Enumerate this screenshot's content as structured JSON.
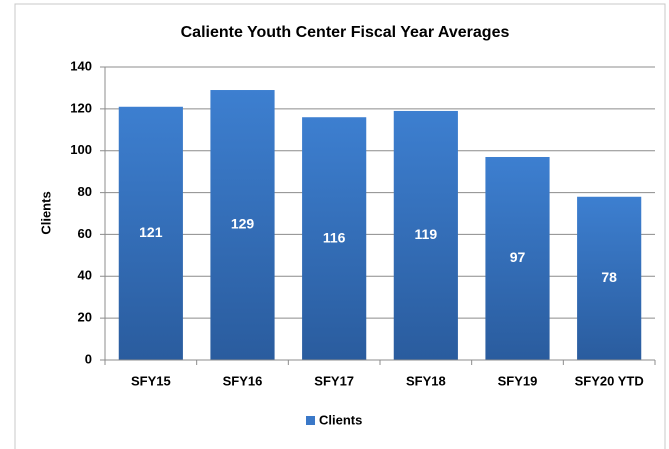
{
  "chart_data": {
    "type": "bar",
    "title": "Caliente Youth Center Fiscal Year Averages",
    "y_label": "Clients",
    "categories": [
      "SFY15",
      "SFY16",
      "SFY17",
      "SFY18",
      "SFY19",
      "SFY20 YTD"
    ],
    "series": [
      {
        "name": "Clients",
        "color": "#3a78c8",
        "values": [
          121,
          129,
          116,
          119,
          97,
          78
        ]
      }
    ],
    "ylim": [
      0,
      140
    ],
    "yticks": [
      0,
      20,
      40,
      60,
      80,
      100,
      120,
      140
    ],
    "grid": true,
    "legend": "bottom"
  }
}
